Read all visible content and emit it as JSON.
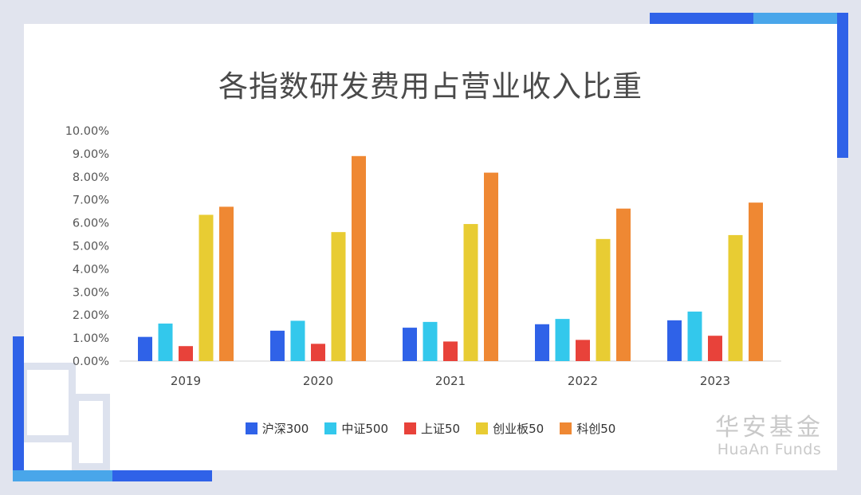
{
  "brand": {
    "name_cn": "华安基金",
    "name_en": "HuaAn Funds"
  },
  "chart_data": {
    "type": "bar",
    "title": "各指数研发费用占营业收入比重",
    "xlabel": "",
    "ylabel": "",
    "ylim": [
      0,
      10
    ],
    "y_ticks": [
      "0.00%",
      "1.00%",
      "2.00%",
      "3.00%",
      "4.00%",
      "5.00%",
      "6.00%",
      "7.00%",
      "8.00%",
      "9.00%",
      "10.00%"
    ],
    "categories": [
      "2019",
      "2020",
      "2021",
      "2022",
      "2023"
    ],
    "legend_position": "bottom",
    "grid": false,
    "series": [
      {
        "name": "沪深300",
        "color": "#2f62e8",
        "values": [
          1.05,
          1.32,
          1.45,
          1.6,
          1.77
        ]
      },
      {
        "name": "中证500",
        "color": "#33c8ec",
        "values": [
          1.63,
          1.75,
          1.7,
          1.83,
          2.15
        ]
      },
      {
        "name": "上证50",
        "color": "#e8423a",
        "values": [
          0.65,
          0.75,
          0.85,
          0.92,
          1.1
        ]
      },
      {
        "name": "创业板50",
        "color": "#e8cc33",
        "values": [
          6.35,
          5.6,
          5.95,
          5.3,
          5.47
        ]
      },
      {
        "name": "科创50",
        "color": "#ef8833",
        "values": [
          6.7,
          8.9,
          8.18,
          6.62,
          6.88
        ]
      }
    ]
  }
}
